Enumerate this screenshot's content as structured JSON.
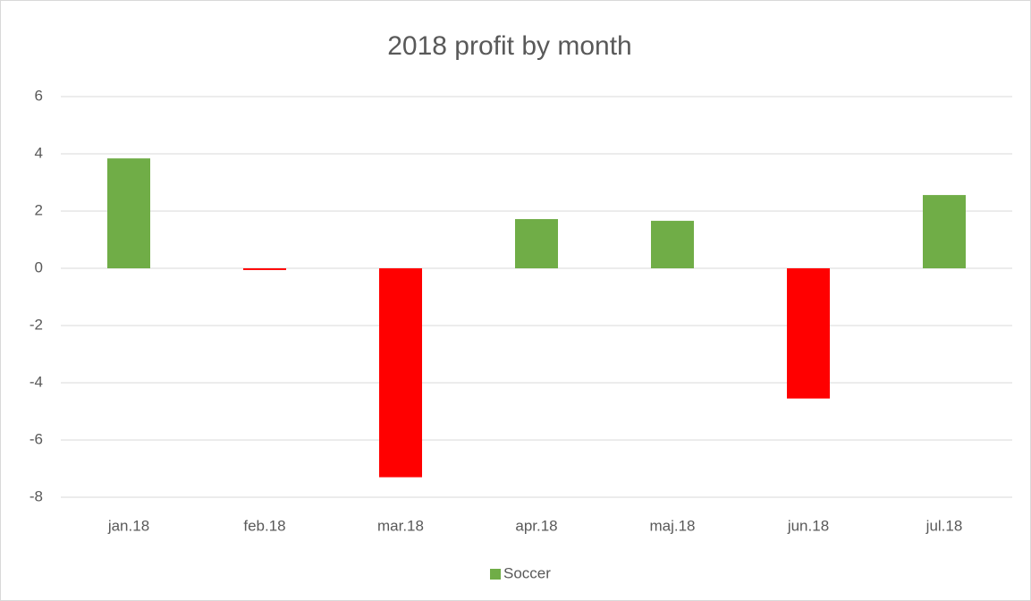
{
  "chart_data": {
    "type": "bar",
    "title": "2018 profit by month",
    "categories": [
      "jan.18",
      "feb.18",
      "mar.18",
      "apr.18",
      "maj.18",
      "jun.18",
      "jul.18"
    ],
    "series": [
      {
        "name": "Soccer",
        "color": "#70ad47",
        "negative_color": "#ff0000",
        "values": [
          3.84,
          -0.06,
          -7.3,
          1.72,
          1.66,
          -4.55,
          2.56
        ]
      }
    ],
    "ylim": [
      -8,
      6
    ],
    "yticks": [
      -8,
      -6,
      -4,
      -2,
      0,
      2,
      4,
      6
    ],
    "grid": true,
    "legend": "bottom"
  }
}
